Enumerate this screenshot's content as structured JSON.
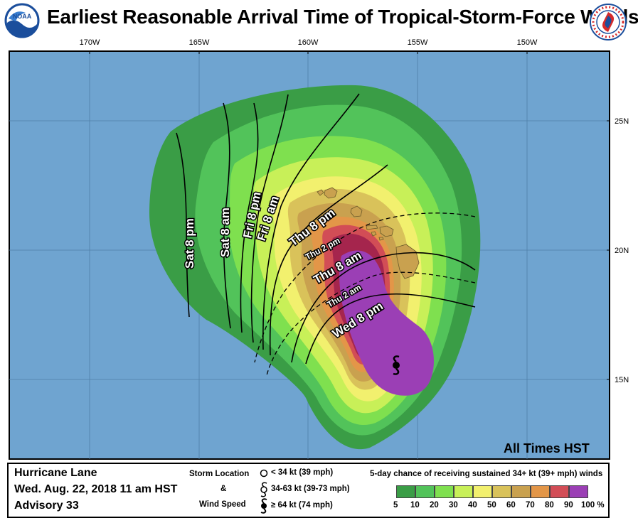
{
  "title": "Earliest Reasonable Arrival Time of Tropical-Storm-Force Winds",
  "logos": {
    "left": "NOAA",
    "right": "NATIONAL WEATHER SERVICE"
  },
  "longitude_labels": [
    "170W",
    "165W",
    "160W",
    "155W",
    "150W"
  ],
  "latitude_labels": [
    "25N",
    "20N",
    "15N"
  ],
  "all_times": "All Times HST",
  "contour_labels": [
    "Sat 8 pm",
    "Sat 8 am",
    "Fri 8 pm",
    "Fri 8 am",
    "Thu 8 pm",
    "Thu 2 pm",
    "Thu 8 am",
    "Thu 2 am",
    "Wed 8 pm"
  ],
  "storm": {
    "name": "Hurricane Lane",
    "date": "Wed. Aug. 22, 2018  11 am HST",
    "advisory": "Advisory 33"
  },
  "storm_legend": {
    "storm_location": "Storm Location",
    "amp": "&",
    "wind_speed": "Wind Speed",
    "items": [
      "< 34 kt (39 mph)",
      "34-63 kt (39-73 mph)",
      "≥ 64 kt (74 mph)"
    ]
  },
  "probability_legend": {
    "title": "5-day chance of receiving sustained 34+ kt (39+ mph) winds",
    "labels": [
      "5",
      "10",
      "20",
      "30",
      "40",
      "50",
      "60",
      "70",
      "80",
      "90",
      "100 %"
    ],
    "colors": [
      "#3a9d46",
      "#52c35a",
      "#7fe04f",
      "#c8f058",
      "#f2f06e",
      "#d9c25a",
      "#c9a14f",
      "#e39648",
      "#d24d56",
      "#a5254d",
      "#9b3fb5"
    ]
  },
  "colors": {
    "ocean": "#6fa4d0",
    "land": "#c9a14f"
  }
}
